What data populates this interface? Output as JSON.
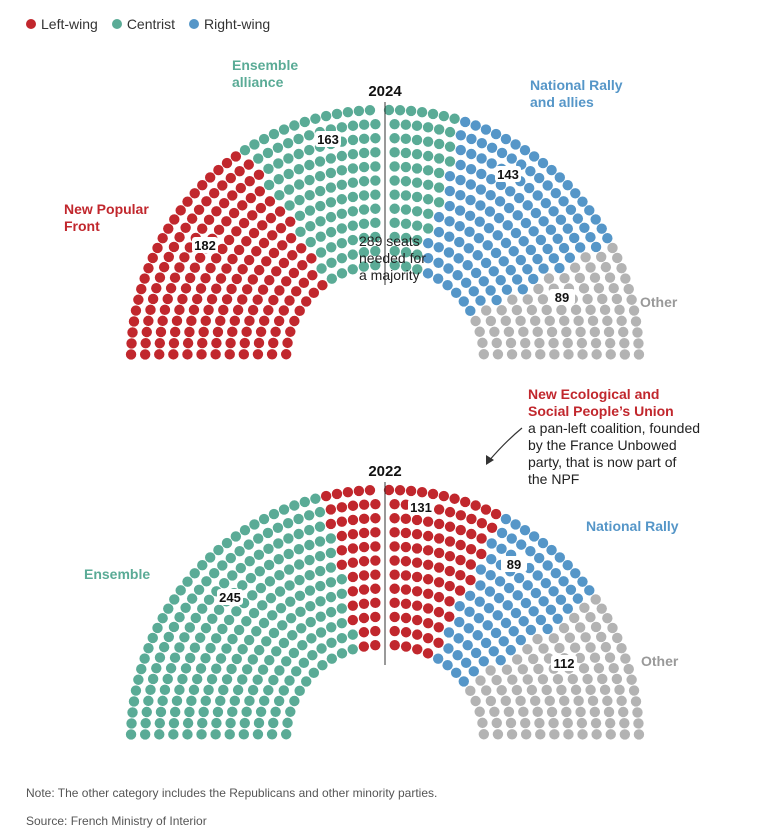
{
  "legend": [
    {
      "label": "Left-wing",
      "color": "#c1272d"
    },
    {
      "label": "Centrist",
      "color": "#5aab96"
    },
    {
      "label": "Right-wing",
      "color": "#5596c8"
    }
  ],
  "colors": {
    "left": "#c1272d",
    "center": "#5aab96",
    "right": "#5596c8",
    "other": "#b3b3b3"
  },
  "chart_data": [
    {
      "type": "parliament",
      "title": "2024",
      "total_seats": 577,
      "series": [
        {
          "name": "New Popular Front",
          "seats": 182,
          "bloc": "left",
          "label_lines": [
            "New Popular",
            "Front"
          ]
        },
        {
          "name": "Ensemble alliance",
          "seats": 163,
          "bloc": "center",
          "label_lines": [
            "Ensemble",
            "alliance"
          ]
        },
        {
          "name": "National Rally and allies",
          "seats": 143,
          "bloc": "right",
          "label_lines": [
            "National Rally",
            "and allies"
          ]
        },
        {
          "name": "Other",
          "seats": 89,
          "bloc": "other",
          "label_lines": [
            "Other"
          ]
        }
      ],
      "majority_note": [
        "289 seats",
        "needed for",
        "a majority"
      ]
    },
    {
      "type": "parliament",
      "title": "2022",
      "total_seats": 577,
      "series": [
        {
          "name": "Ensemble",
          "seats": 245,
          "bloc": "center",
          "label_lines": [
            "Ensemble"
          ]
        },
        {
          "name": "New Ecological and Social People's Union",
          "seats": 131,
          "bloc": "left",
          "label_lines": [
            "New Ecological and",
            "Social People’s Union"
          ]
        },
        {
          "name": "National Rally",
          "seats": 89,
          "bloc": "right",
          "label_lines": [
            "National Rally"
          ]
        },
        {
          "name": "Other",
          "seats": 112,
          "bloc": "other",
          "label_lines": [
            "Other"
          ]
        }
      ],
      "annotation": [
        "a pan-left coalition, founded",
        "by the France Unbowed",
        "party, that is now part of",
        "the NPF"
      ]
    }
  ],
  "note": "Note: The other category includes the Republicans and other minority parties.",
  "source": "Source: French Ministry of Interior"
}
